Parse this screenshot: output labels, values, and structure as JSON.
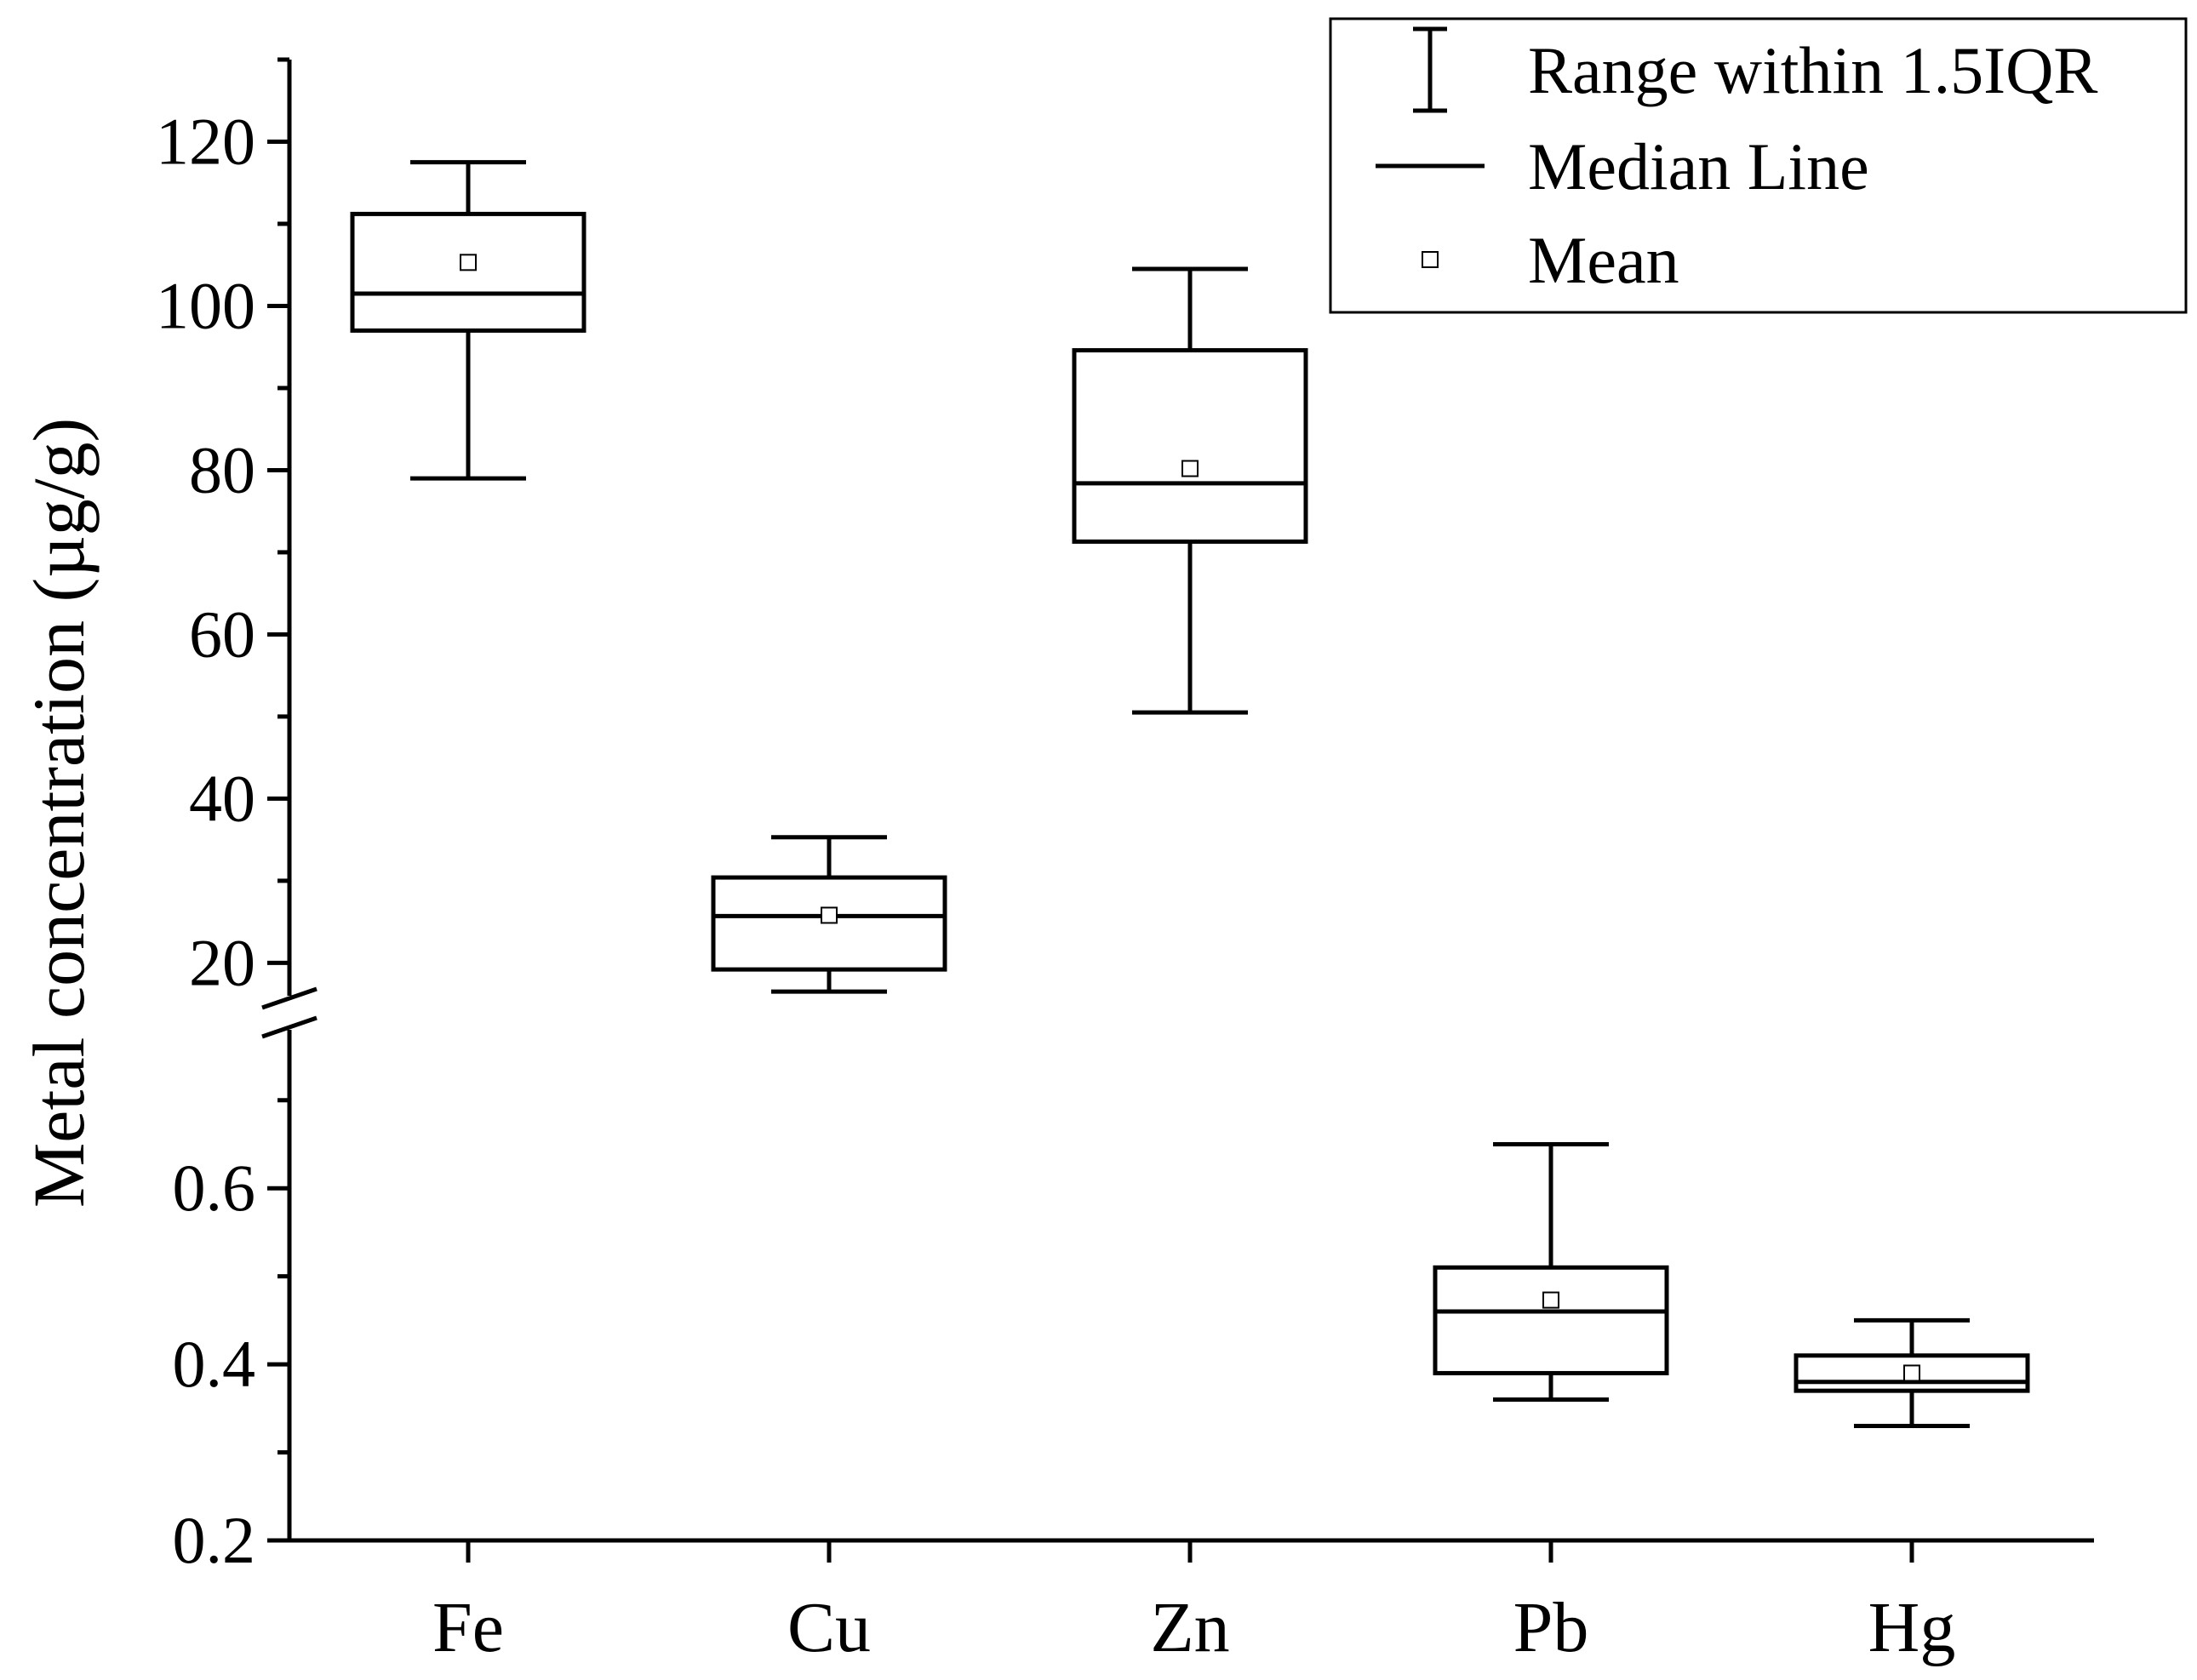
{
  "chart_data": {
    "type": "box",
    "ylabel": "Metal concentration (µg/g)",
    "xlabel": "",
    "categories": [
      "Fe",
      "Cu",
      "Zn",
      "Pb",
      "Hg"
    ],
    "axis_break": true,
    "upper_segment": {
      "ylim": [
        16,
        130
      ],
      "ticks": [
        20,
        40,
        60,
        80,
        100,
        120
      ],
      "tick_labels": [
        "20",
        "40",
        "60",
        "80",
        "100",
        "120"
      ]
    },
    "lower_segment": {
      "ylim": [
        0.2,
        0.78
      ],
      "ticks": [
        0.2,
        0.4,
        0.6
      ],
      "tick_labels": [
        "0.2",
        "0.4",
        "0.6"
      ]
    },
    "boxes": [
      {
        "category": "Fe",
        "segment": "upper",
        "whisker_low": 79,
        "q1": 97,
        "median": 101.5,
        "q3": 111.2,
        "whisker_high": 117.5,
        "mean": 105.3
      },
      {
        "category": "Cu",
        "segment": "upper",
        "whisker_low": 16.5,
        "q1": 19.2,
        "median": 25.7,
        "q3": 30.4,
        "whisker_high": 35.3,
        "mean": 25.8
      },
      {
        "category": "Zn",
        "segment": "upper",
        "whisker_low": 50.5,
        "q1": 71.3,
        "median": 78.4,
        "q3": 94.6,
        "whisker_high": 104.5,
        "mean": 80.2
      },
      {
        "category": "Pb",
        "segment": "lower",
        "whisker_low": 0.36,
        "q1": 0.39,
        "median": 0.46,
        "q3": 0.51,
        "whisker_high": 0.65,
        "mean": 0.473
      },
      {
        "category": "Hg",
        "segment": "lower",
        "whisker_low": 0.33,
        "q1": 0.37,
        "median": 0.38,
        "q3": 0.41,
        "whisker_high": 0.45,
        "mean": 0.39
      }
    ],
    "legend": {
      "position": "top-right",
      "entries": [
        {
          "symbol": "whisker",
          "label": "Range within 1.5IQR"
        },
        {
          "symbol": "line",
          "label": "Median Line"
        },
        {
          "symbol": "square",
          "label": "Mean"
        }
      ]
    }
  }
}
